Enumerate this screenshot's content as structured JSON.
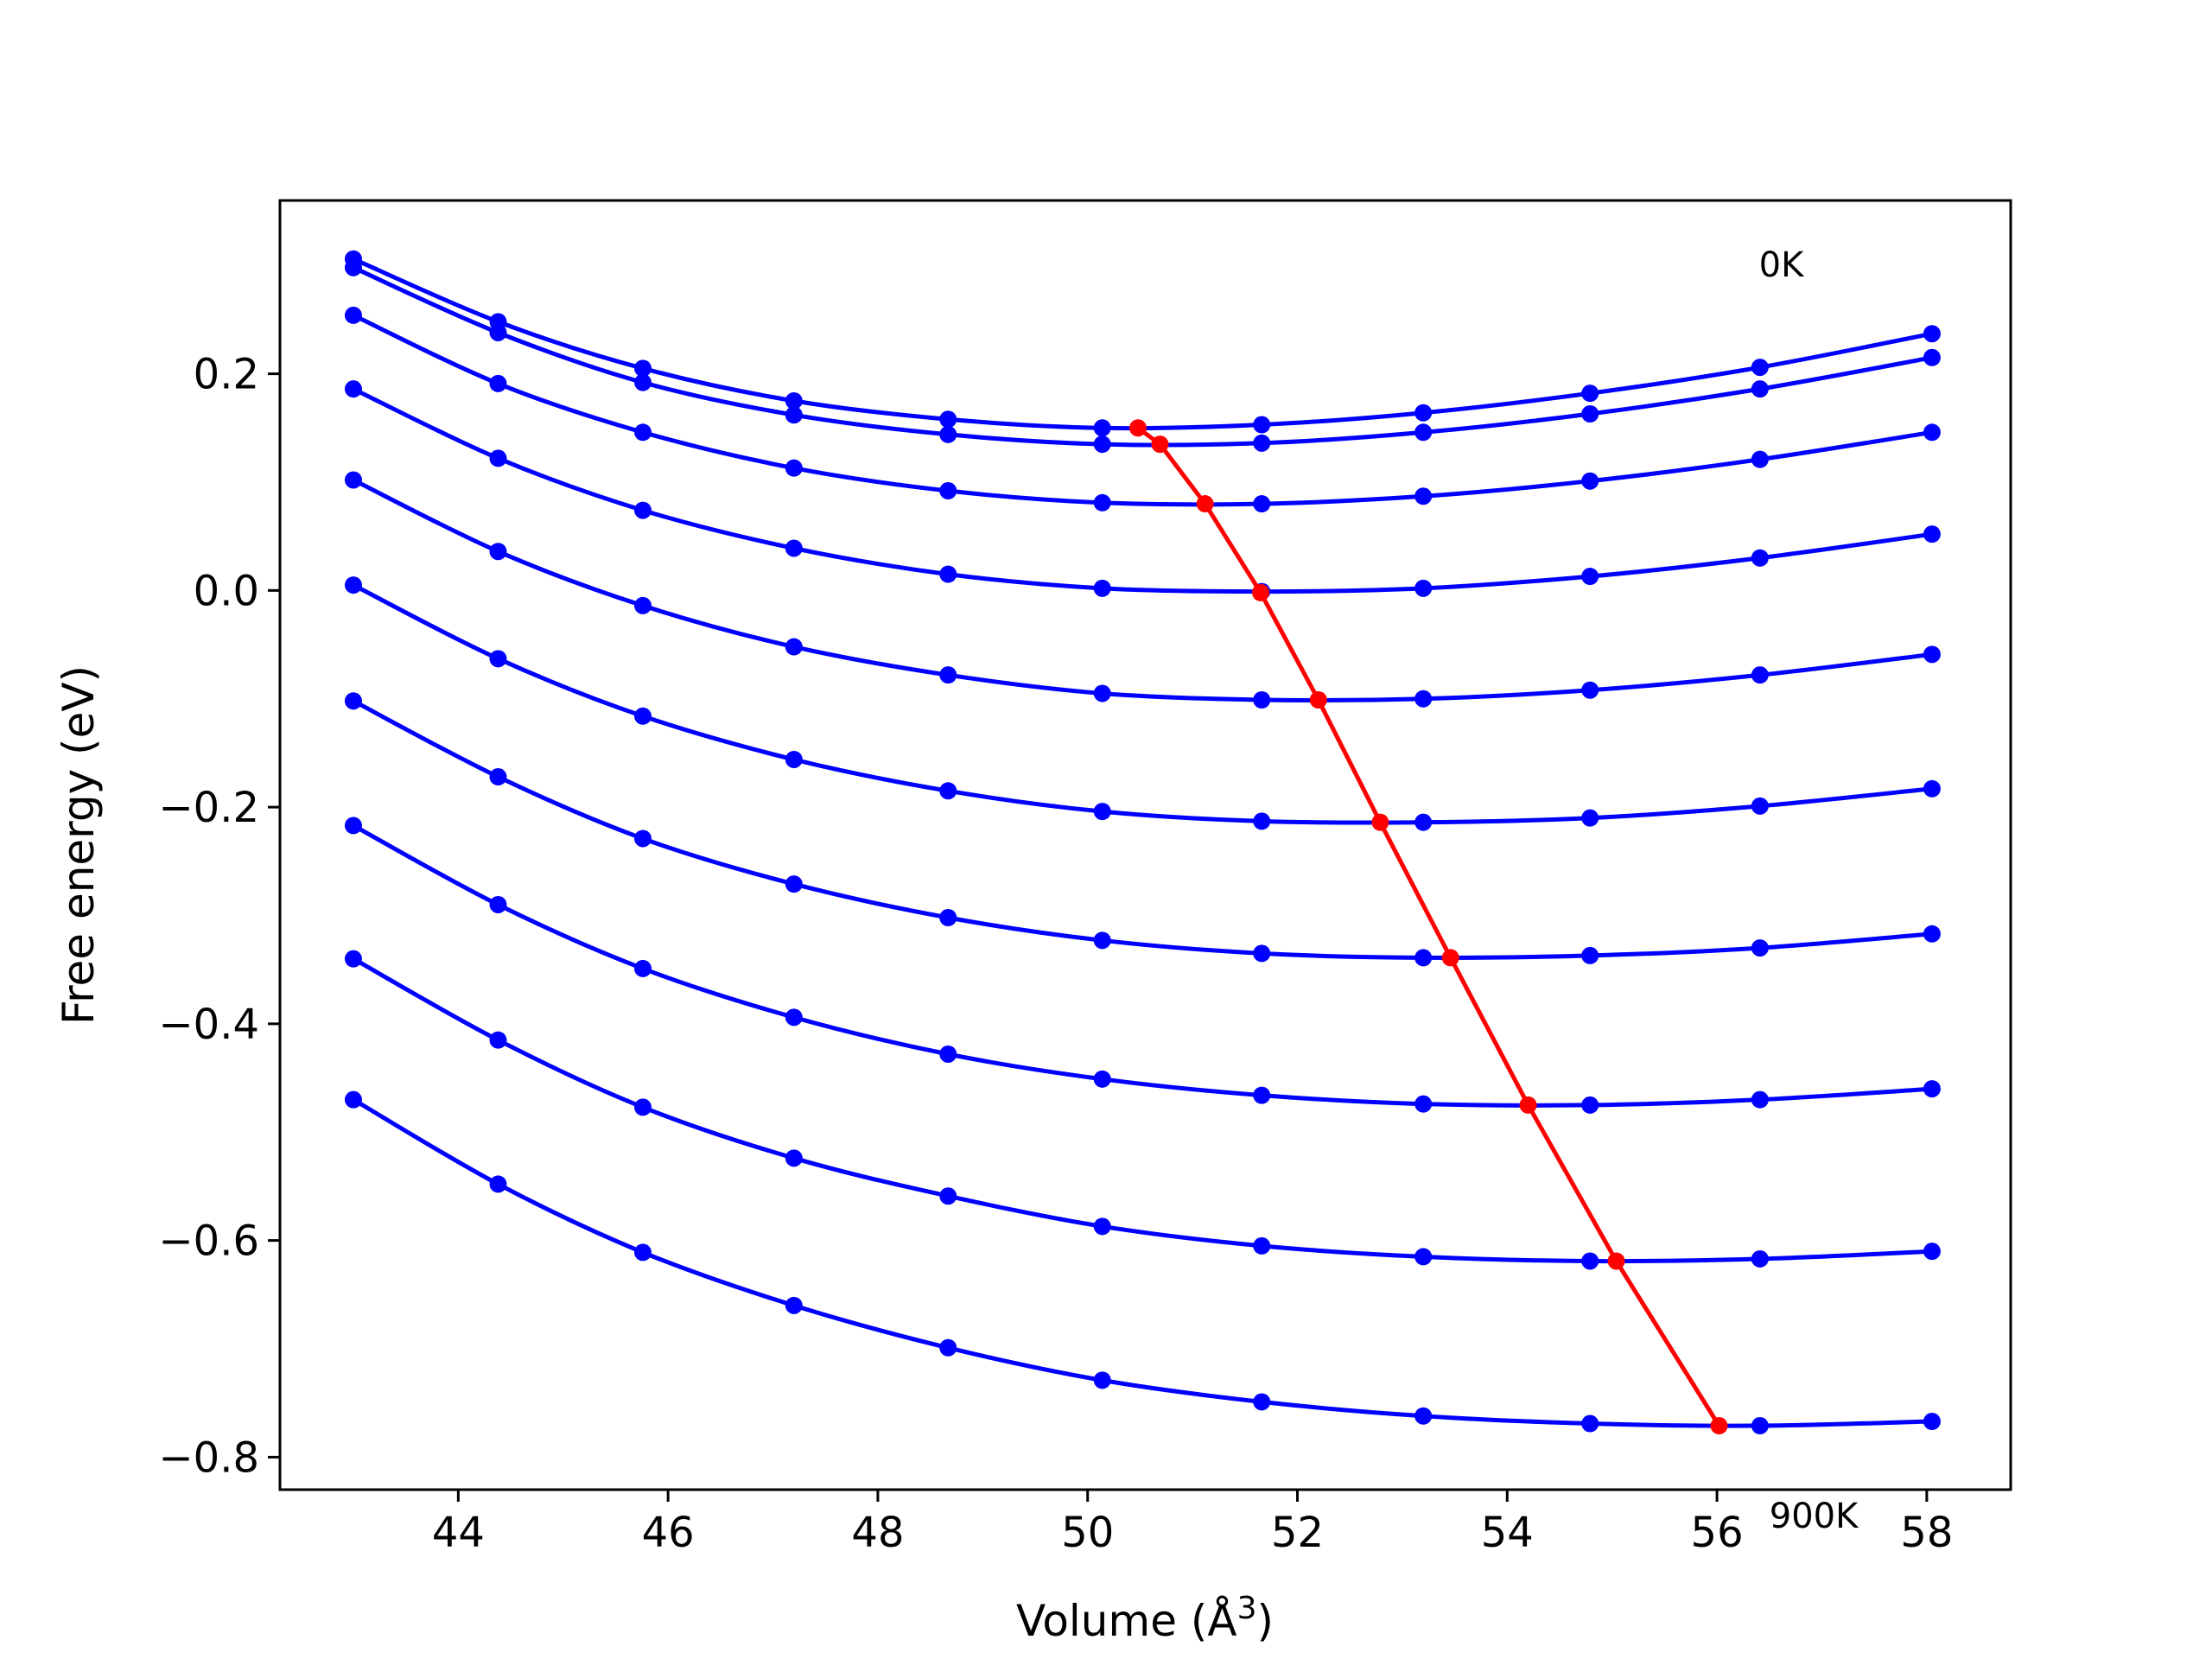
{
  "chart_data": {
    "type": "line",
    "title": "",
    "xlabel": "Volume (Å",
    "xlabel_sup": "3",
    "xlabel_close": ")",
    "ylabel": "Free energy (eV)",
    "xlim": [
      42.3,
      58.8
    ],
    "ylim": [
      -0.83,
      0.36
    ],
    "xticks": [
      44,
      46,
      48,
      50,
      52,
      54,
      56,
      58
    ],
    "xtick_labels": [
      "44",
      "46",
      "48",
      "50",
      "52",
      "54",
      "56",
      "58"
    ],
    "yticks": [
      -0.8,
      -0.6,
      -0.4,
      -0.2,
      0.0,
      0.2
    ],
    "ytick_labels": [
      "−0.8",
      "−0.6",
      "−0.4",
      "−0.2",
      "0.0",
      "0.2"
    ],
    "grid": false,
    "annotations": [
      {
        "text": "0K",
        "x": 56.4,
        "y": 0.29
      },
      {
        "text": "900K",
        "x": 56.5,
        "y": -0.865
      }
    ],
    "curve_color": "#0000ff",
    "minimum_color": "#ff0000",
    "x": [
      43.0,
      44.38,
      45.76,
      47.2,
      48.67,
      50.14,
      51.66,
      53.2,
      54.79,
      56.41,
      58.05
    ],
    "series": [
      {
        "values": [
          0.306,
          0.248,
          0.205,
          0.175,
          0.158,
          0.15,
          0.153,
          0.164,
          0.182,
          0.206,
          0.237
        ]
      },
      {
        "values": [
          0.298,
          0.238,
          0.192,
          0.162,
          0.144,
          0.135,
          0.136,
          0.146,
          0.163,
          0.186,
          0.215
        ]
      },
      {
        "values": [
          0.254,
          0.191,
          0.146,
          0.113,
          0.092,
          0.081,
          0.08,
          0.087,
          0.101,
          0.121,
          0.146
        ]
      },
      {
        "values": [
          0.102,
          0.036,
          -0.014,
          -0.052,
          -0.078,
          -0.095,
          -0.101,
          -0.1,
          -0.092,
          -0.078,
          -0.059
        ]
      },
      {
        "values": [
          0.186,
          0.122,
          0.074,
          0.039,
          0.015,
          0.002,
          -0.001,
          0.002,
          0.013,
          0.03,
          0.052
        ]
      },
      {
        "values": [
          0.005,
          -0.063,
          -0.116,
          -0.156,
          -0.185,
          -0.204,
          -0.213,
          -0.214,
          -0.21,
          -0.199,
          -0.183
        ]
      },
      {
        "values": [
          -0.102,
          -0.172,
          -0.229,
          -0.271,
          -0.302,
          -0.323,
          -0.335,
          -0.339,
          -0.337,
          -0.33,
          -0.317
        ]
      },
      {
        "values": [
          -0.217,
          -0.29,
          -0.349,
          -0.394,
          -0.428,
          -0.451,
          -0.466,
          -0.474,
          -0.475,
          -0.47,
          -0.46
        ]
      },
      {
        "values": [
          -0.34,
          -0.415,
          -0.477,
          -0.524,
          -0.559,
          -0.587,
          -0.605,
          -0.615,
          -0.619,
          -0.617,
          -0.61
        ]
      },
      {
        "values": [
          -0.47,
          -0.548,
          -0.611,
          -0.66,
          -0.699,
          -0.729,
          -0.749,
          -0.762,
          -0.769,
          -0.771,
          -0.767
        ]
      }
    ],
    "minimum_line": {
      "x": [
        50.48,
        50.69,
        51.12,
        51.65,
        52.2,
        52.79,
        53.46,
        54.2,
        55.04,
        56.02
      ],
      "y": [
        0.15,
        0.135,
        0.08,
        -0.002,
        -0.101,
        -0.214,
        -0.339,
        -0.475,
        -0.619,
        -0.771
      ]
    }
  }
}
